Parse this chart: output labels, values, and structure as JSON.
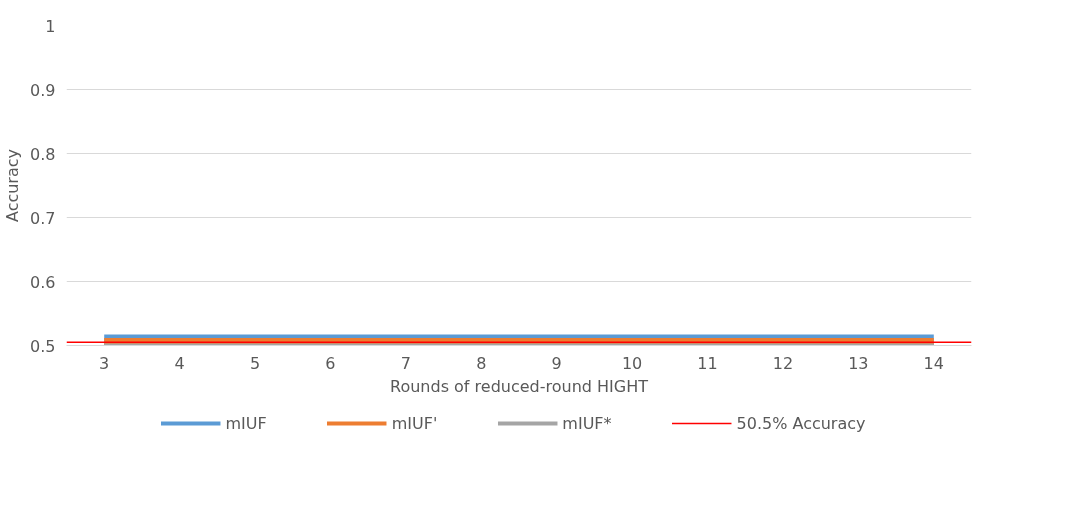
{
  "chart_data": {
    "type": "line",
    "xlabel": "Rounds of reduced-round HIGHT",
    "ylabel": "Accuracy",
    "categories": [
      "3",
      "4",
      "5",
      "6",
      "7",
      "8",
      "9",
      "10",
      "11",
      "12",
      "13",
      "14"
    ],
    "series": [
      {
        "name": "mIUF",
        "color": "#5b9bd5",
        "values": [
          0.5,
          0.5,
          0.5,
          0.5,
          0.5,
          0.5,
          0.5,
          0.5,
          0.5,
          0.5,
          0.5,
          0.5
        ]
      },
      {
        "name": "mIUF'",
        "color": "#ed7d31",
        "values": [
          0.5,
          0.5,
          0.5,
          0.5,
          0.5,
          0.5,
          0.5,
          0.5,
          0.5,
          0.5,
          0.5,
          0.5
        ]
      },
      {
        "name": "mIUF*",
        "color": "#a5a5a5",
        "values": [
          0.5,
          0.5,
          0.5,
          0.5,
          0.5,
          0.5,
          0.5,
          0.5,
          0.5,
          0.5,
          0.5,
          0.5
        ]
      }
    ],
    "ref_lines": [
      {
        "axis": "y",
        "value": 0.505,
        "label": "50.5% Accuracy",
        "color": "#ff0000"
      }
    ],
    "ylim": [
      0.5,
      1
    ],
    "yticks": [
      0.5,
      0.6,
      0.7,
      0.8,
      0.9,
      1
    ],
    "grid": "y",
    "legend": "bottom",
    "marker": "none",
    "line_style": "solid"
  }
}
